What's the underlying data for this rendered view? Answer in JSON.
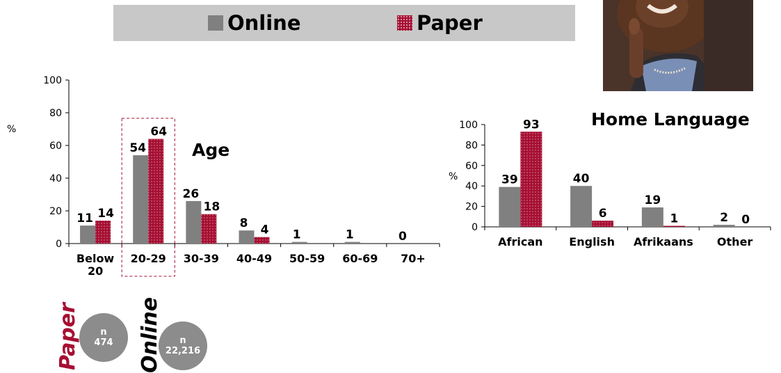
{
  "legend": {
    "online_label": "Online",
    "paper_label": "Paper",
    "online_color": "#808080",
    "paper_color": "#a60f32"
  },
  "photo": {
    "icon": "woman-thinking-photo"
  },
  "samples": {
    "paper": {
      "label": "Paper",
      "n_label": "n",
      "n_value": "474"
    },
    "online": {
      "label": "Online",
      "n_label": "n",
      "n_value": "22,216"
    }
  },
  "chart_data": [
    {
      "type": "bar",
      "title": "Age",
      "ylabel": "%",
      "categories": [
        "Below 20",
        "20-29",
        "30-39",
        "40-49",
        "50-59",
        "60-69",
        "70+"
      ],
      "series": [
        {
          "name": "Online",
          "values": [
            11,
            54,
            26,
            8,
            1,
            1,
            0
          ]
        },
        {
          "name": "Paper",
          "values": [
            14,
            64,
            18,
            4,
            null,
            null,
            null
          ]
        }
      ],
      "ylim": [
        0,
        100
      ],
      "yticks": [
        0,
        20,
        40,
        60,
        80,
        100
      ],
      "highlight_category": "20-29"
    },
    {
      "type": "bar",
      "title": "Home Language",
      "ylabel": "%",
      "categories": [
        "African",
        "English",
        "Afrikaans",
        "Other"
      ],
      "series": [
        {
          "name": "Online",
          "values": [
            39,
            40,
            19,
            2
          ]
        },
        {
          "name": "Paper",
          "values": [
            93,
            6,
            1,
            0
          ]
        }
      ],
      "ylim": [
        0,
        100
      ],
      "yticks": [
        0,
        20,
        40,
        60,
        80,
        100
      ]
    }
  ]
}
